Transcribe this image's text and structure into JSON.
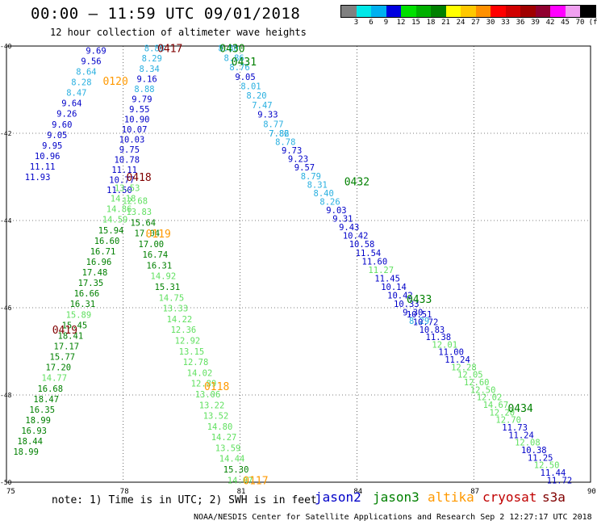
{
  "header": {
    "title": "00:00 – 11:59 UTC 09/01/2018",
    "subtitle": "12 hour collection of altimeter wave heights"
  },
  "color_scale": {
    "ticks": [
      "3",
      "6",
      "9",
      "12",
      "15",
      "18",
      "21",
      "24",
      "27",
      "30",
      "33",
      "36",
      "39",
      "42",
      "45",
      "70",
      "(ft)"
    ],
    "colors": [
      "#808080",
      "#00e8e8",
      "#00b0f0",
      "#0000e0",
      "#00e000",
      "#00b000",
      "#008000",
      "#ffff00",
      "#ffc800",
      "#ff9000",
      "#ff0000",
      "#d00000",
      "#a00000",
      "#900030",
      "#ff00ff",
      "#f0a0f0",
      "#000000"
    ]
  },
  "axes": {
    "lon_labels": [
      "75",
      "78",
      "81",
      "84",
      "87",
      "90"
    ],
    "lat_labels": [
      "-40",
      "-42",
      "-44",
      "-46",
      "-48",
      "-50"
    ]
  },
  "colors": {
    "jason2": "#0000c8",
    "jason3": "#008000",
    "altika": "#ff9900",
    "cryosat": "#c00000",
    "s3a": "#800000",
    "light_blue": "#2ab0e0",
    "light_green": "#60e060"
  },
  "footer": {
    "note": "note: 1) Time is in UTC; 2) SWH is in feet",
    "satellites": [
      "jason2",
      "jason3",
      "altika",
      "cryosat",
      "s3a"
    ],
    "credit": "NOAA/NESDIS Center for Satellite Applications and Research   Sep  2 12:27:17 UTC 2018"
  },
  "time_labels": [
    {
      "text": "0417",
      "x": 79.2,
      "y": -40.05,
      "sat": "s3a"
    },
    {
      "text": "0430",
      "x": 80.8,
      "y": -40.05,
      "sat": "jason3"
    },
    {
      "text": "0431",
      "x": 81.1,
      "y": -40.35,
      "sat": "jason3"
    },
    {
      "text": "0120",
      "x": 77.8,
      "y": -40.8,
      "sat": "altika"
    },
    {
      "text": "0418",
      "x": 78.4,
      "y": -43.0,
      "sat": "s3a"
    },
    {
      "text": "0432",
      "x": 84.0,
      "y": -43.1,
      "sat": "jason3"
    },
    {
      "text": "0119",
      "x": 78.9,
      "y": -44.3,
      "sat": "altika"
    },
    {
      "text": "0433",
      "x": 85.6,
      "y": -45.8,
      "sat": "jason3"
    },
    {
      "text": "0419",
      "x": 76.5,
      "y": -46.5,
      "sat": "s3a"
    },
    {
      "text": "0118",
      "x": 80.4,
      "y": -47.8,
      "sat": "altika"
    },
    {
      "text": "0434",
      "x": 88.2,
      "y": -48.3,
      "sat": "jason3"
    },
    {
      "text": "0117",
      "x": 81.4,
      "y": -49.95,
      "sat": "altika"
    }
  ],
  "tracks": [
    {
      "name": "track-a-upper",
      "lon_start": 77.3,
      "lon_end": 75.8,
      "lat_start": -40.1,
      "lat_end": -43.0,
      "values": [
        "9.69",
        "9.56",
        "8.64",
        "8.28",
        "8.47",
        "9.64",
        "9.26",
        "9.60",
        "9.05",
        "9.95",
        "10.96",
        "11.11",
        "11.93"
      ],
      "colors": [
        "jason2",
        "jason2",
        "light_blue",
        "light_blue",
        "light_blue",
        "jason2",
        "jason2",
        "jason2",
        "jason2",
        "jason2",
        "jason2",
        "jason2",
        "jason2"
      ]
    },
    {
      "name": "track-b-upper",
      "lon_start": 78.8,
      "lon_end": 77.9,
      "lat_start": -40.05,
      "lat_end": -43.3,
      "values": [
        "8.88",
        "8.29",
        "8.34",
        "9.16",
        "8.88",
        "9.79",
        "9.55",
        "10.90",
        "10.07",
        "10.03",
        "9.75",
        "10.78",
        "11.11",
        "10.77",
        "11.50"
      ],
      "colors": [
        "light_blue",
        "light_blue",
        "light_blue",
        "jason2",
        "light_blue",
        "jason2",
        "jason2",
        "jason2",
        "jason2",
        "jason2",
        "jason2",
        "jason2",
        "jason2",
        "jason2",
        "jason2"
      ]
    },
    {
      "name": "track-a-lower",
      "lon_start": 78.1,
      "lon_end": 75.5,
      "lat_start": -43.25,
      "lat_end": -49.3,
      "values": [
        "13.53",
        "14.18",
        "14.86",
        "14.59",
        "15.94",
        "16.60",
        "16.71",
        "16.96",
        "17.48",
        "17.35",
        "16.66",
        "16.31",
        "15.89",
        "15.45",
        "18.41",
        "17.17",
        "15.77",
        "17.20",
        "14.77",
        "16.68",
        "18.47",
        "16.35",
        "18.99",
        "16.93",
        "18.44",
        "18.99"
      ],
      "colors": [
        "light_green",
        "light_green",
        "light_green",
        "light_green",
        "jason3",
        "jason3",
        "jason3",
        "jason3",
        "jason3",
        "jason3",
        "jason3",
        "jason3",
        "light_green",
        "jason3",
        "jason3",
        "jason3",
        "jason3",
        "jason3",
        "light_green",
        "jason3",
        "jason3",
        "jason3",
        "jason3",
        "jason3",
        "jason3",
        "jason3"
      ]
    },
    {
      "name": "track-b-lower",
      "lon_start": 78.3,
      "lon_end": 81.0,
      "lat_start": -43.55,
      "lat_end": -49.95,
      "values": [
        "12.68",
        "13.83",
        "15.64",
        "17.04",
        "17.00",
        "16.74",
        "16.31",
        "14.92",
        "15.31",
        "14.75",
        "13.33",
        "14.22",
        "12.36",
        "12.92",
        "13.15",
        "12.78",
        "14.02",
        "12.89",
        "13.06",
        "13.22",
        "13.52",
        "14.80",
        "14.27",
        "13.59",
        "14.44",
        "15.30",
        "14.07"
      ],
      "colors": [
        "light_green",
        "light_green",
        "jason3",
        "jason3",
        "jason3",
        "jason3",
        "jason3",
        "light_green",
        "jason3",
        "light_green",
        "light_green",
        "light_green",
        "light_green",
        "light_green",
        "light_green",
        "light_green",
        "light_green",
        "light_green",
        "light_green",
        "light_green",
        "light_green",
        "light_green",
        "light_green",
        "light_green",
        "light_green",
        "jason3",
        "light_green"
      ]
    },
    {
      "name": "track-c-upper",
      "lon_start": 80.7,
      "lon_end": 82.0,
      "lat_start": -40.05,
      "lat_end": -42.0,
      "values": [
        "8.80",
        "8.86",
        "8.76",
        "9.05",
        "8.01",
        "8.20",
        "7.47",
        "9.33",
        "8.77",
        "7.86"
      ],
      "colors": [
        "light_blue",
        "light_blue",
        "light_blue",
        "jason2",
        "light_blue",
        "light_blue",
        "light_blue",
        "jason2",
        "light_blue",
        "light_blue"
      ]
    },
    {
      "name": "track-c-mid",
      "lon_start": 82.0,
      "lon_end": 85.6,
      "lat_start": -42.0,
      "lat_end": -46.3,
      "values": [
        "7.82",
        "8.78",
        "9.73",
        "9.23",
        "9.57",
        "8.79",
        "8.31",
        "8.40",
        "8.26",
        "9.03",
        "9.31",
        "9.43",
        "10.42",
        "10.58",
        "11.54",
        "11.60",
        "11.27",
        "11.45",
        "10.14",
        "10.42",
        "10.33",
        "9.30",
        "8.29"
      ],
      "colors": [
        "light_blue",
        "light_blue",
        "jason2",
        "jason2",
        "jason2",
        "light_blue",
        "light_blue",
        "light_blue",
        "light_blue",
        "jason2",
        "jason2",
        "jason2",
        "jason2",
        "jason2",
        "jason2",
        "jason2",
        "light_green",
        "jason2",
        "jason2",
        "jason2",
        "jason2",
        "jason2",
        "light_blue"
      ]
    },
    {
      "name": "track-c-lower",
      "lon_start": 85.6,
      "lon_end": 89.2,
      "lat_start": -46.15,
      "lat_end": -49.95,
      "values": [
        "10.51",
        "10.72",
        "10.83",
        "11.38",
        "12.01",
        "11.00",
        "11.24",
        "12.28",
        "12.05",
        "12.60",
        "12.50",
        "12.02",
        "14.67",
        "12.20",
        "12.70",
        "11.73",
        "11.24",
        "12.08",
        "10.38",
        "11.25",
        "12.50",
        "11.44",
        "11.72"
      ],
      "colors": [
        "jason2",
        "jason2",
        "jason2",
        "jason2",
        "light_green",
        "jason2",
        "jason2",
        "light_green",
        "light_green",
        "light_green",
        "light_green",
        "light_green",
        "light_green",
        "light_green",
        "light_green",
        "jason2",
        "jason2",
        "light_green",
        "jason2",
        "jason2",
        "light_green",
        "jason2",
        "jason2"
      ]
    }
  ]
}
